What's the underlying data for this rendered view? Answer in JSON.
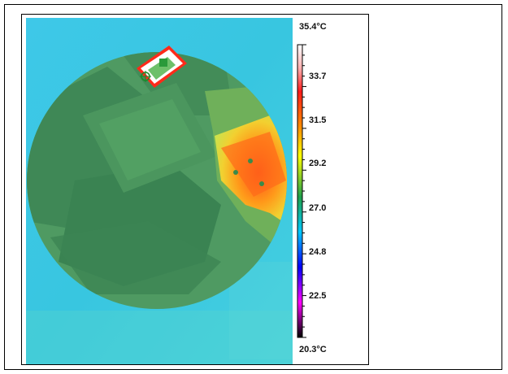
{
  "image": {
    "description_free": true
  },
  "scale": {
    "max_label": "35.4°C",
    "min_label": "20.3°C",
    "ticks": [
      "33.7",
      "31.5",
      "29.2",
      "27.0",
      "24.8",
      "22.5"
    ],
    "gradient_colors": [
      "#ffffff",
      "#ff1a1a",
      "#ff8c00",
      "#ffff00",
      "#1fa04a",
      "#00c8ff",
      "#0000ff",
      "#ff00ff",
      "#000000"
    ]
  },
  "colors": {
    "background_cyan": "#35c8e6",
    "dark_green": "#3d8a55",
    "mid_green": "#4f9a60",
    "yellow": "#d8e03a",
    "orange": "#ff8c1a",
    "red": "#ff2a1a",
    "white": "#ffffff"
  }
}
